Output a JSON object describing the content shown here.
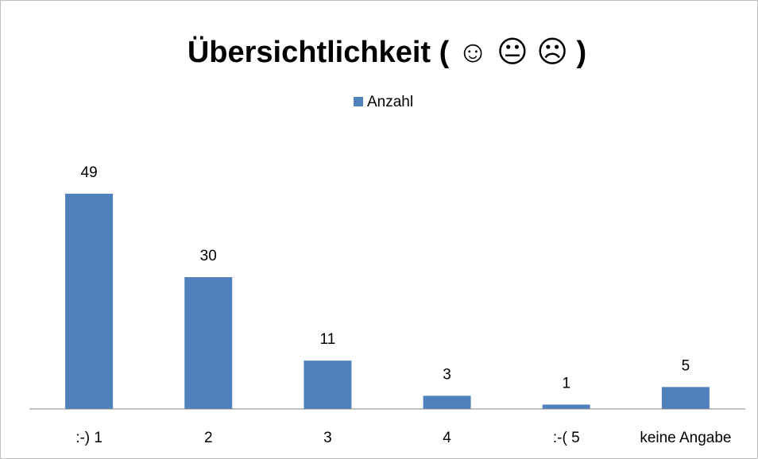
{
  "chart_data": {
    "type": "bar",
    "title": "Übersichtlichkeit ( ☺ 😐 ☹ )",
    "categories": [
      ":-) 1",
      "2",
      "3",
      "4",
      ":-( 5",
      "keine Angabe"
    ],
    "series": [
      {
        "name": "Anzahl",
        "color": "#4f81bd",
        "values": [
          49,
          30,
          11,
          3,
          1,
          5
        ]
      }
    ],
    "ylim": [
      0,
      60
    ],
    "legend": "top"
  }
}
